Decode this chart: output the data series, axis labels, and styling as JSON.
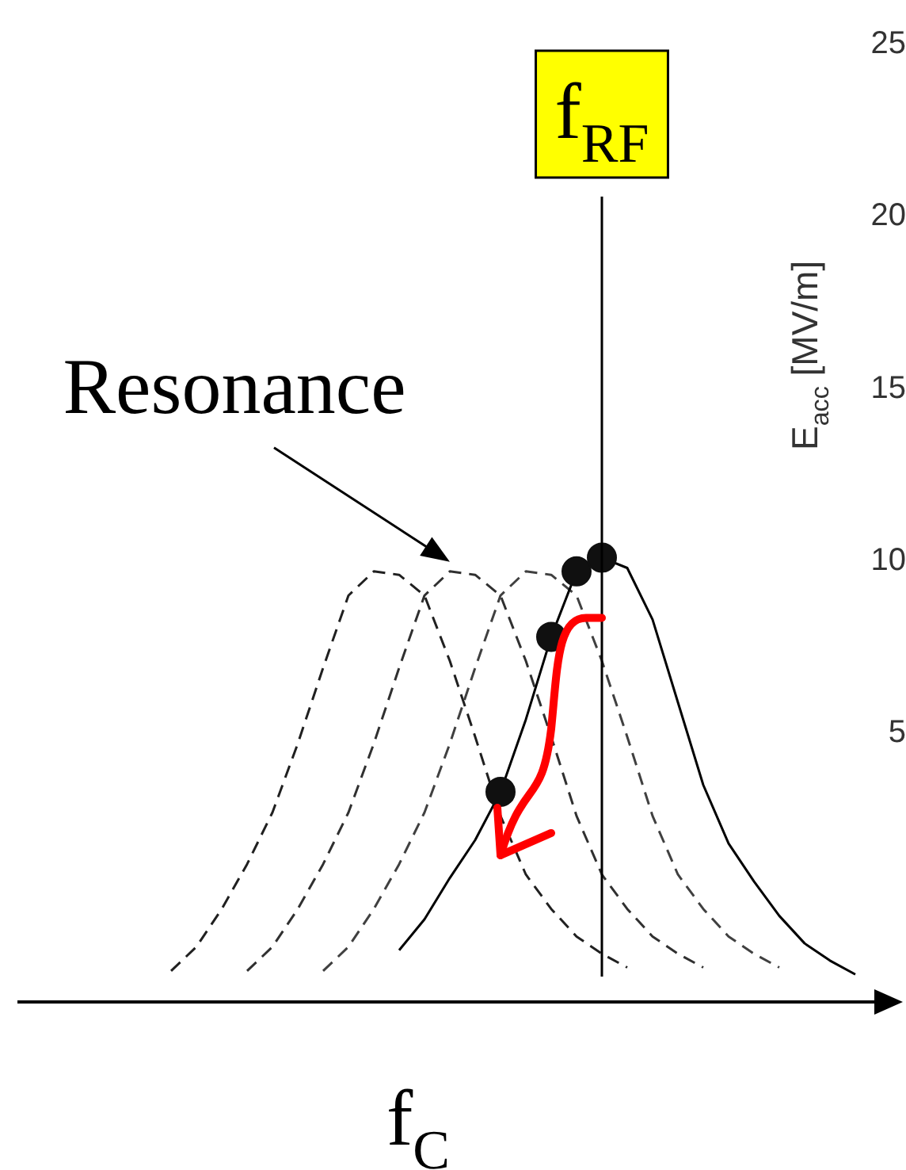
{
  "chart_data": {
    "type": "line",
    "xlabel": "f$_{C}$",
    "ylabel": "E$_{acc}$ [MV/m]",
    "categories": [
      null,
      null,
      null,
      null,
      null,
      null,
      null,
      null,
      null,
      null,
      null,
      null,
      null,
      null,
      null,
      null,
      null,
      null,
      null,
      null,
      null,
      null,
      null,
      null,
      null,
      null,
      null,
      null,
      null,
      null,
      null,
      null,
      null,
      null,
      null
    ],
    "ylim": [
      -2.8,
      25
    ],
    "yticks": [
      5,
      10,
      15,
      20,
      25
    ],
    "tick_labels": "y",
    "grid": false,
    "legend": false,
    "series": [
      {
        "line_style": "dashed",
        "color": "#202020",
        "values": [
          null,
          null,
          null,
          null,
          null,
          null,
          -1.9,
          -1.2,
          -0.1,
          1.2,
          2.7,
          4.7,
          6.9,
          9.0,
          9.7,
          9.6,
          9.0,
          7.1,
          4.9,
          2.6,
          0.9,
          -0.1,
          -0.9,
          -1.4,
          -1.8,
          null,
          null,
          null,
          null,
          null,
          null,
          null,
          null,
          null,
          null
        ]
      },
      {
        "line_style": "dashed",
        "color": "#303030",
        "values": [
          null,
          null,
          null,
          null,
          null,
          null,
          null,
          null,
          null,
          -1.9,
          -1.2,
          -0.1,
          1.2,
          2.7,
          4.7,
          6.9,
          9.0,
          9.7,
          9.6,
          9.0,
          7.1,
          4.9,
          2.6,
          0.9,
          -0.1,
          -0.9,
          -1.4,
          -1.8,
          null,
          null,
          null,
          null,
          null,
          null,
          null
        ]
      },
      {
        "line_style": "dashed",
        "color": "#404040",
        "values": [
          null,
          null,
          null,
          null,
          null,
          null,
          null,
          null,
          null,
          null,
          null,
          null,
          -1.9,
          -1.2,
          -0.1,
          1.2,
          2.7,
          4.7,
          6.9,
          9.0,
          9.7,
          9.6,
          9.0,
          7.1,
          4.9,
          2.6,
          0.9,
          -0.1,
          -0.9,
          -1.4,
          -1.8,
          null,
          null,
          null,
          null
        ]
      },
      {
        "line_style": "solid",
        "color": "#000000",
        "values": [
          null,
          null,
          null,
          null,
          null,
          null,
          null,
          null,
          null,
          null,
          null,
          null,
          null,
          null,
          null,
          -1.3,
          -0.4,
          0.8,
          1.9,
          3.3,
          5.4,
          7.8,
          9.7,
          10.1,
          9.8,
          8.3,
          5.9,
          3.5,
          1.8,
          0.7,
          -0.3,
          -1.1,
          -1.6,
          -2.0,
          null
        ]
      },
      {
        "type": "scatter",
        "marker": "circle",
        "color": "#101010",
        "values": [
          null,
          null,
          null,
          null,
          null,
          null,
          null,
          null,
          null,
          null,
          null,
          null,
          null,
          null,
          null,
          null,
          null,
          null,
          null,
          3.3,
          null,
          7.8,
          9.7,
          10.1,
          null,
          null,
          null,
          null,
          null,
          null,
          null,
          null,
          null,
          null,
          null
        ]
      }
    ],
    "ref_lines": [
      {
        "axis": "x",
        "label": "f$_{RF}$",
        "color": "#000000"
      }
    ],
    "annotations": [
      "Resonance"
    ]
  }
}
